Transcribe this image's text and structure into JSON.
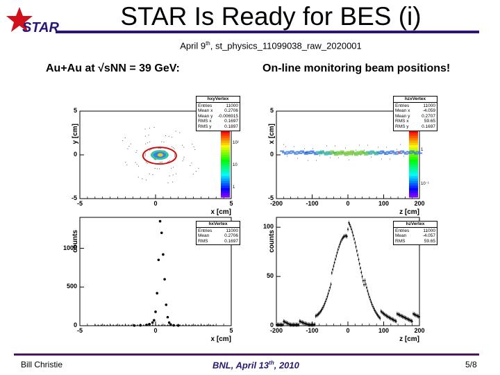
{
  "slide": {
    "title": "STAR Is Ready for BES (i)",
    "logo_text": "STAR",
    "subtitle_pre": "April 9",
    "subtitle_sup": "th",
    "subtitle_post": ", st_physics_11099038_raw_2020001",
    "left_caption": "Au+Au at √sNN = 39 GeV:",
    "right_caption": "On-line monitoring beam positions!",
    "footer_left": "Bill Christie",
    "footer_center_pre": "BNL, April 13",
    "footer_center_sup": "th",
    "footer_center_post": ", 2010",
    "footer_right": "5/8",
    "colors": {
      "title_line": "#2a1673",
      "footer_line": "#4a1660",
      "star_red": "#d0101a",
      "logo_blue": "#2a1673"
    }
  },
  "chart_data": [
    {
      "type": "heatmap",
      "statbox": {
        "name": "hxyVertex",
        "rows": [
          [
            "Entries",
            "11000"
          ],
          [
            "Mean x",
            "0.2706"
          ],
          [
            "Mean y",
            "-0.006915"
          ],
          [
            "RMS x",
            "0.1697"
          ],
          [
            "RMS y",
            "0.1897"
          ]
        ]
      },
      "xlabel": "x [cm]",
      "ylabel": "y [cm]",
      "xlim": [
        -5,
        5
      ],
      "ylim": [
        -5,
        5
      ],
      "xticks": [
        "-5",
        "0",
        "5"
      ],
      "yticks": [
        "5",
        "0",
        "-5"
      ],
      "colorbar_ticks": [
        "10²",
        "10",
        "1"
      ],
      "center": [
        0.27,
        -0.01
      ]
    },
    {
      "type": "heatmap",
      "statbox": {
        "name": "hzxVertex",
        "rows": [
          [
            "Entries",
            "11000"
          ],
          [
            "Mean x",
            "-4.059"
          ],
          [
            "Mean y",
            "0.2707"
          ],
          [
            "RMS x",
            "59.65"
          ],
          [
            "RMS y",
            "0.1697"
          ]
        ]
      },
      "xlabel": "z [cm]",
      "ylabel": "x [cm]",
      "xlim": [
        -200,
        200
      ],
      "ylim": [
        -5,
        5
      ],
      "xticks": [
        "-200",
        "-100",
        "0",
        "100",
        "200"
      ],
      "yticks": [
        "5",
        "0",
        "-5"
      ],
      "colorbar_ticks": [
        "1",
        "10⁻¹"
      ],
      "center": [
        -4.06,
        0.27
      ]
    },
    {
      "type": "scatter",
      "statbox": {
        "name": "hxVertex",
        "rows": [
          [
            "Entries",
            "11000"
          ],
          [
            "Mean",
            "0.2706"
          ],
          [
            "RMS",
            "0.1697"
          ]
        ]
      },
      "xlabel": "x [cm]",
      "ylabel": "counts",
      "xlim": [
        -5,
        5
      ],
      "ylim": [
        0,
        1400
      ],
      "xticks": [
        "-5",
        "0",
        "5"
      ],
      "yticks": [
        "1000",
        "500",
        "0"
      ],
      "x": [
        -1.4,
        -1.0,
        -0.6,
        -0.4,
        -0.2,
        -0.1,
        0.0,
        0.1,
        0.2,
        0.3,
        0.4,
        0.5,
        0.6,
        0.7,
        0.8,
        0.9,
        1.0,
        1.2,
        1.5
      ],
      "y": [
        2,
        5,
        10,
        20,
        40,
        70,
        180,
        420,
        850,
        1350,
        1200,
        920,
        600,
        270,
        110,
        40,
        15,
        5,
        2
      ]
    },
    {
      "type": "scatter",
      "statbox": {
        "name": "hzVertex",
        "rows": [
          [
            "Entries",
            "11000"
          ],
          [
            "Mean",
            "-4.057"
          ],
          [
            "RMS",
            "59.65"
          ]
        ]
      },
      "xlabel": "z [cm]",
      "ylabel": "counts",
      "xlim": [
        -200,
        200
      ],
      "ylim": [
        0,
        110
      ],
      "xticks": [
        "-200",
        "-100",
        "0",
        "100",
        "200"
      ],
      "yticks": [
        "100",
        "50",
        "0"
      ],
      "mean": -4,
      "sigma": 36,
      "peak": 102,
      "floor": 8
    }
  ]
}
